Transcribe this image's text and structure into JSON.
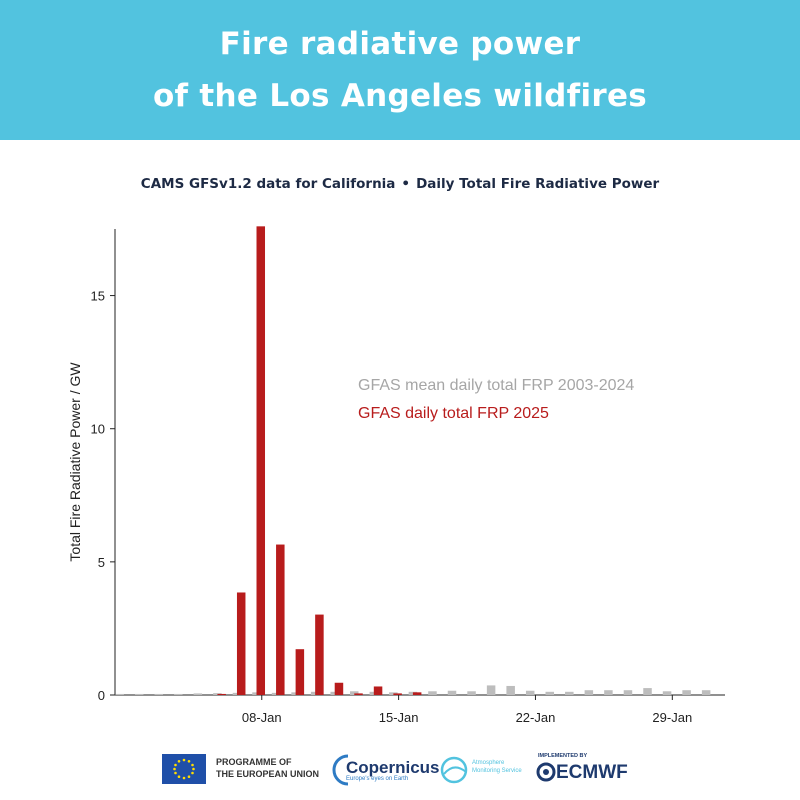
{
  "banner": {
    "title_line1": "Fire radiative power",
    "title_line2": "of the Los Angeles wildfires"
  },
  "subtitle": {
    "left": "CAMS GFSv1.2 data for California",
    "right": "Daily Total Fire Radiative Power"
  },
  "colors": {
    "banner": "#52c3df",
    "series_2025": "#b81c1c",
    "series_mean": "#bdbdbd",
    "legend_mean_text": "#a6a6a6",
    "legend_2025_text": "#b81c1c"
  },
  "chart_data": {
    "type": "bar",
    "ylabel": "Total Fire Radiative Power / GW",
    "xlabel": "",
    "ylim": [
      0,
      17.5
    ],
    "yticks": [
      0,
      5,
      10,
      15
    ],
    "x_tick_labels": [
      "08-Jan",
      "15-Jan",
      "22-Jan",
      "29-Jan"
    ],
    "x_tick_days": [
      8,
      15,
      22,
      29
    ],
    "x_range_days": [
      1,
      31
    ],
    "grid": false,
    "legend_position": "center-right",
    "series": [
      {
        "name": "GFAS mean daily total FRP 2003-2024",
        "days": [
          1,
          2,
          3,
          4,
          5,
          6,
          7,
          8,
          9,
          10,
          11,
          12,
          13,
          14,
          15,
          16,
          17,
          18,
          19,
          20,
          21,
          22,
          23,
          24,
          25,
          26,
          27,
          28,
          29,
          30,
          31
        ],
        "values": [
          0.04,
          0.04,
          0.04,
          0.04,
          0.06,
          0.07,
          0.08,
          0.1,
          0.08,
          0.1,
          0.12,
          0.12,
          0.14,
          0.12,
          0.1,
          0.12,
          0.14,
          0.16,
          0.14,
          0.36,
          0.34,
          0.16,
          0.12,
          0.12,
          0.18,
          0.18,
          0.18,
          0.26,
          0.14,
          0.18,
          0.18
        ]
      },
      {
        "name": "GFAS daily total FRP 2025",
        "days": [
          1,
          2,
          3,
          4,
          5,
          6,
          7,
          8,
          9,
          10,
          11,
          12,
          13,
          14,
          15,
          16,
          17,
          18,
          19,
          20,
          21,
          22,
          23,
          24,
          25,
          26,
          27,
          28,
          29,
          30,
          31
        ],
        "values": [
          0,
          0,
          0,
          0,
          0,
          0.04,
          3.85,
          17.6,
          5.65,
          1.72,
          3.02,
          0.46,
          0.06,
          0.32,
          0.06,
          0.1,
          0,
          0,
          0,
          0,
          0,
          0,
          0,
          0,
          0,
          0,
          0,
          0,
          0,
          0,
          0
        ]
      }
    ]
  },
  "footer": {
    "eu_line1": "PROGRAMME OF",
    "eu_line2": "THE EUROPEAN UNION",
    "copernicus": "Copernicus",
    "copernicus_tagline": "Europe's eyes on Earth",
    "cams_line1": "Atmosphere",
    "cams_line2": "Monitoring Service",
    "implemented_by": "IMPLEMENTED BY",
    "ecmwf": "ECMWF"
  }
}
